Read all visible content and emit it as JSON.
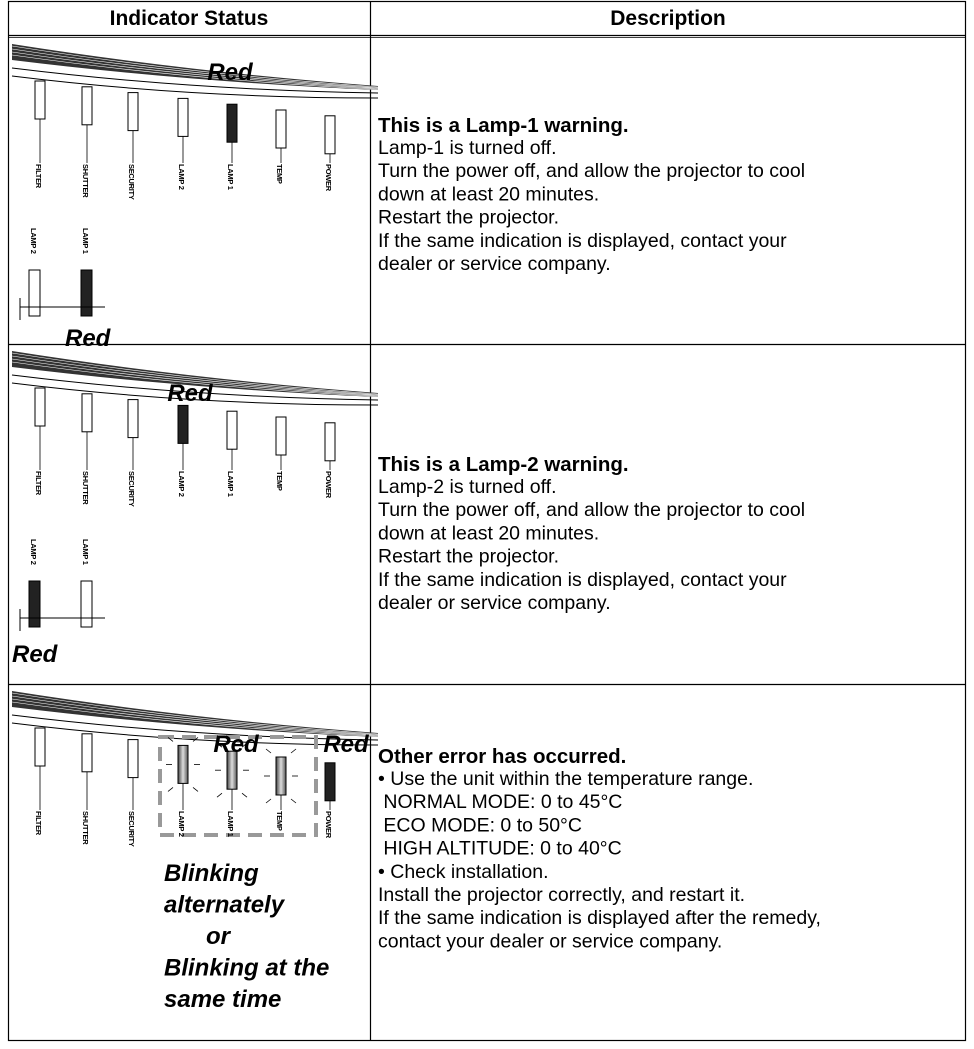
{
  "table": {
    "header": [
      "Indicator Status",
      "Description"
    ],
    "rows": [
      {
        "indicator": {
          "labels": [
            "FILTER",
            "SHUTTER",
            "SECURITY",
            "LAMP 2",
            "LAMP 1",
            "TEMP",
            "POWER"
          ],
          "states": [
            "Red"
          ],
          "lamp_labels": [
            "LAMP 2",
            "LAMP 1"
          ],
          "lamp_state": "Red"
        },
        "description": {
          "heading": "This is a Lamp-1 warning.",
          "lines": [
            "Lamp-1 is turned off.",
            "Turn the power off, and allow the projector to cool",
            "down at least 20 minutes.",
            "Restart the projector.",
            "If the same indication is displayed, contact your",
            "dealer or service company."
          ]
        }
      },
      {
        "indicator": {
          "labels": [
            "FILTER",
            "SHUTTER",
            "SECURITY",
            "LAMP 2",
            "LAMP 1",
            "TEMP",
            "POWER"
          ],
          "states": [
            "Red"
          ],
          "lamp_labels": [
            "LAMP 2",
            "LAMP 1"
          ],
          "lamp_state": "Red"
        },
        "description": {
          "heading": "This is a Lamp-2 warning.",
          "lines": [
            "Lamp-2 is turned off.",
            "Turn the power off, and allow the projector to cool",
            "down at least 20 minutes.",
            "Restart the projector.",
            "If the same indication is displayed, contact your",
            "dealer or service company."
          ]
        }
      },
      {
        "indicator": {
          "labels": [
            "FILTER",
            "SHUTTER",
            "SECURITY",
            "LAMP 2",
            "LAMP 1",
            "TEMP",
            "POWER"
          ],
          "states": [
            "Red",
            "Red"
          ],
          "note": [
            "Blinking",
            "alternately",
            "or",
            "Blinking at the",
            "same time"
          ]
        },
        "description": {
          "heading": "Other error has occurred.",
          "lines": [
            "• Use the unit within the temperature range.",
            " NORMAL MODE: 0 to 45°C",
            " ECO MODE: 0 to 50°C",
            " HIGH ALTITUDE: 0 to 40°C",
            "• Check installation.",
            "Install the projector correctly, and restart it.",
            "If the same indication is displayed after the remedy,",
            "contact your dealer or service company."
          ]
        }
      }
    ]
  }
}
